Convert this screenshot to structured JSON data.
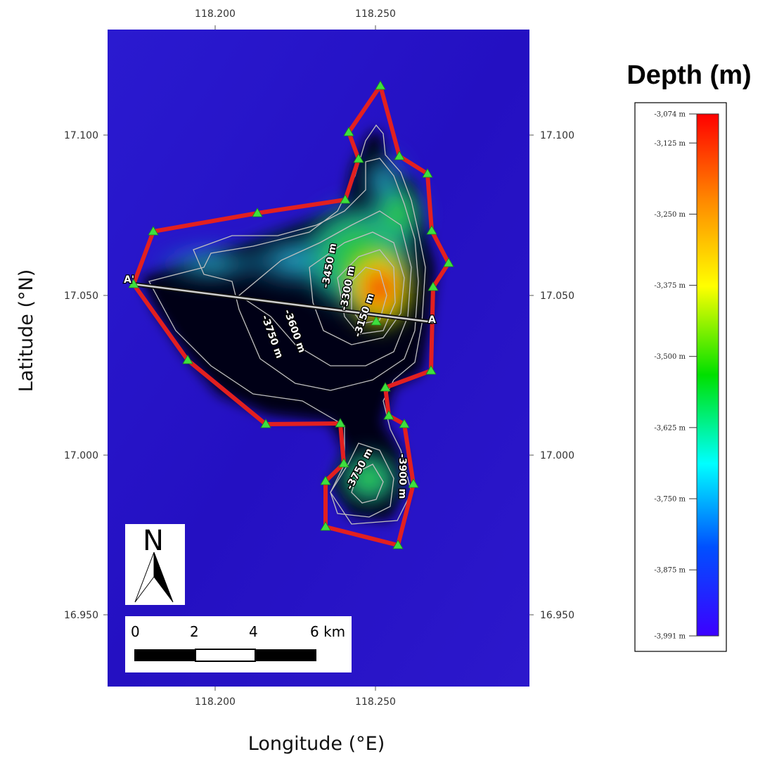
{
  "map": {
    "x_axis_label": "Longitude (°E)",
    "y_axis_label": "Latitude (°N)",
    "x_ticks": [
      "118.200",
      "118.250"
    ],
    "y_ticks": [
      "17.100",
      "17.050",
      "17.000",
      "16.950"
    ],
    "x_tick_values": [
      118.2,
      118.25
    ],
    "y_tick_values": [
      17.1,
      17.05,
      17.0,
      16.95
    ],
    "profile": {
      "start_label": "A'",
      "end_label": "A"
    },
    "contour_labels": [
      "-3450 m",
      "-3300 m",
      "-3150 m",
      "-3600 m",
      "-3750 m",
      "-3750 m",
      "-3900 m"
    ],
    "boundary_color": "#e02020",
    "vertex_color": "#3ee03e",
    "background_color": "#2a14c8"
  },
  "north_arrow": {
    "label": "N"
  },
  "scale_bar": {
    "labels": [
      "0",
      "2",
      "4",
      "6 km"
    ]
  },
  "legend": {
    "title": "Depth (m)",
    "ticks": [
      "-3,074 m",
      "-3,125 m",
      "-3,250 m",
      "-3,375 m",
      "-3,500 m",
      "-3,625 m",
      "-3,750 m",
      "-3,875 m",
      "-3,991 m"
    ],
    "tick_values": [
      -3074,
      -3125,
      -3250,
      -3375,
      -3500,
      -3625,
      -3750,
      -3875,
      -3991
    ],
    "min": -3991,
    "max": -3074,
    "gradient_colors": [
      "#ff0000",
      "#ff8c00",
      "#ffff00",
      "#00e000",
      "#00ffff",
      "#0050ff",
      "#3c00ff"
    ]
  }
}
